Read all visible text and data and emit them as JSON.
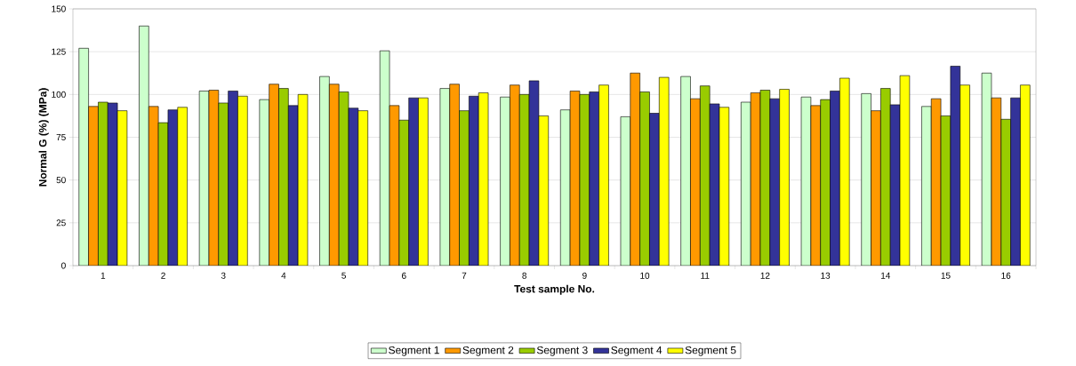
{
  "chart_data": {
    "type": "bar",
    "xlabel": "Test sample No.",
    "ylabel": "Normal G (%) (MPa)",
    "categories": [
      "1",
      "2",
      "3",
      "4",
      "5",
      "6",
      "7",
      "8",
      "9",
      "10",
      "11",
      "12",
      "13",
      "14",
      "15",
      "16"
    ],
    "series": [
      {
        "name": "Segment 1",
        "color": "#ccffcc",
        "values": [
          127,
          140,
          102,
          97,
          110.5,
          125.5,
          103.5,
          98.5,
          91,
          87,
          110.5,
          95.5,
          98.5,
          100.5,
          93,
          112.5
        ]
      },
      {
        "name": "Segment 2",
        "color": "#ff9900",
        "values": [
          93,
          93,
          102.5,
          106,
          106,
          93.5,
          106,
          105.5,
          102,
          112.5,
          97.5,
          101,
          93.5,
          90.5,
          97.5,
          98
        ]
      },
      {
        "name": "Segment 3",
        "color": "#99cc00",
        "values": [
          95.5,
          83.5,
          95,
          103.5,
          101.5,
          85,
          90.5,
          100,
          100,
          101.5,
          105,
          102.5,
          97,
          103.5,
          87.5,
          85.5
        ]
      },
      {
        "name": "Segment 4",
        "color": "#333399",
        "values": [
          95,
          91,
          102,
          93.5,
          92,
          98,
          99,
          108,
          101.5,
          89,
          94.5,
          97.5,
          102,
          94,
          116.5,
          98
        ]
      },
      {
        "name": "Segment 5",
        "color": "#ffff00",
        "values": [
          90.5,
          92.5,
          99,
          100,
          90.5,
          98,
          101,
          87.5,
          105.5,
          110,
          92.5,
          103,
          109.5,
          111,
          105.5,
          105.5
        ]
      }
    ],
    "ylim": [
      0,
      150
    ],
    "yticks": [
      0,
      25,
      50,
      75,
      100,
      125,
      150
    ],
    "grid": "y",
    "legend": "bottom"
  }
}
